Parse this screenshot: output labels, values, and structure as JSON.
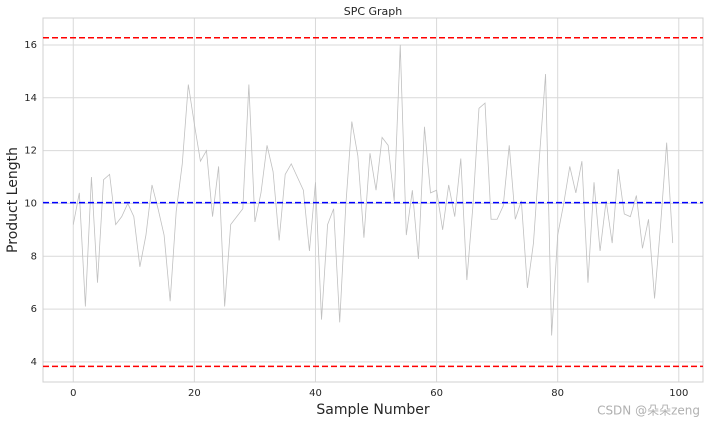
{
  "chart_data": {
    "type": "line",
    "title": "SPC Graph",
    "x_label": "Sample Number",
    "y_label": "Product Length",
    "watermark": "CSDN @朵朵zeng",
    "x": [
      0,
      1,
      2,
      3,
      4,
      5,
      6,
      7,
      8,
      9,
      10,
      11,
      12,
      13,
      14,
      15,
      16,
      17,
      18,
      19,
      20,
      21,
      22,
      23,
      24,
      25,
      26,
      27,
      28,
      29,
      30,
      31,
      32,
      33,
      34,
      35,
      36,
      37,
      38,
      39,
      40,
      41,
      42,
      43,
      44,
      45,
      46,
      47,
      48,
      49,
      50,
      51,
      52,
      53,
      54,
      55,
      56,
      57,
      58,
      59,
      60,
      61,
      62,
      63,
      64,
      65,
      66,
      67,
      68,
      69,
      70,
      71,
      72,
      73,
      74,
      75,
      76,
      77,
      78,
      79,
      80,
      81,
      82,
      83,
      84,
      85,
      86,
      87,
      88,
      89,
      90,
      91,
      92,
      93,
      94,
      95,
      96,
      97,
      98,
      99
    ],
    "series": [
      {
        "color": "#c0c0c0",
        "values": [
          9.2,
          10.4,
          6.1,
          11.0,
          7.0,
          10.9,
          11.1,
          9.2,
          9.5,
          10.0,
          9.5,
          7.6,
          8.8,
          10.7,
          9.8,
          8.8,
          6.3,
          9.7,
          11.5,
          14.5,
          13.0,
          11.6,
          12.0,
          9.5,
          11.4,
          6.1,
          9.2,
          9.5,
          9.8,
          14.5,
          9.3,
          10.4,
          12.2,
          11.2,
          8.6,
          11.1,
          11.5,
          11.0,
          10.5,
          8.2,
          10.8,
          5.6,
          9.2,
          9.8,
          5.5,
          9.9,
          13.1,
          11.8,
          8.7,
          11.9,
          10.5,
          12.5,
          12.2,
          10.1,
          16.0,
          8.8,
          10.5,
          7.9,
          12.9,
          10.4,
          10.5,
          9.0,
          10.7,
          9.5,
          11.7,
          7.1,
          9.9,
          13.6,
          13.8,
          9.4,
          9.4,
          9.9,
          12.2,
          9.4,
          10.1,
          6.8,
          8.5,
          11.8,
          14.9,
          5.0,
          8.8,
          10.0,
          11.4,
          10.4,
          11.6,
          7.0,
          10.8,
          8.2,
          10.1,
          8.5,
          11.3,
          9.6,
          9.5,
          10.3,
          8.3,
          9.4,
          6.4,
          9.2,
          12.3,
          8.5
        ]
      }
    ],
    "reference_lines": [
      {
        "value": 10.03,
        "color": "#0000ff"
      },
      {
        "value": 16.27,
        "color": "#ff0000"
      },
      {
        "value": 3.83,
        "color": "#ff0000"
      }
    ],
    "xlim": [
      -5,
      104
    ],
    "xticks": [
      0,
      20,
      40,
      60,
      80,
      100
    ],
    "ylim": [
      3.24,
      17.02
    ],
    "yticks": [
      4,
      6,
      8,
      10,
      12,
      14,
      16
    ],
    "grid": true
  }
}
